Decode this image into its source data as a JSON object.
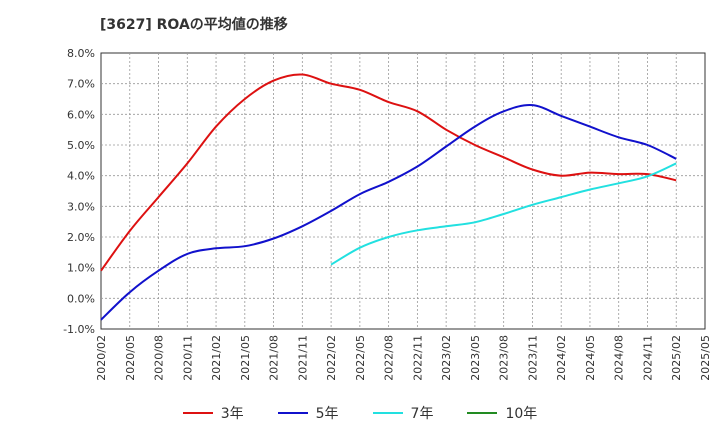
{
  "chart_data": {
    "type": "line",
    "title": "[3627]  ROAの平均値の推移",
    "xlabel": "",
    "ylabel": "",
    "ylim": [
      -1.0,
      8.0
    ],
    "yticks": [
      "-1.0%",
      "0.0%",
      "1.0%",
      "2.0%",
      "3.0%",
      "4.0%",
      "5.0%",
      "6.0%",
      "7.0%",
      "8.0%"
    ],
    "xticks": [
      "2020/02",
      "2020/05",
      "2020/08",
      "2020/11",
      "2021/02",
      "2021/05",
      "2021/08",
      "2021/11",
      "2022/02",
      "2022/05",
      "2022/08",
      "2022/11",
      "2023/02",
      "2023/05",
      "2023/08",
      "2023/11",
      "2024/02",
      "2024/05",
      "2024/08",
      "2024/11",
      "2025/02",
      "2025/05"
    ],
    "grid": true,
    "legend_position": "bottom",
    "series": [
      {
        "name": "3年",
        "color": "#dd1111",
        "x": [
          "2020/02",
          "2020/05",
          "2020/08",
          "2020/11",
          "2021/02",
          "2021/05",
          "2021/08",
          "2021/11",
          "2022/02",
          "2022/05",
          "2022/08",
          "2022/11",
          "2023/02",
          "2023/05",
          "2023/08",
          "2023/11",
          "2024/02",
          "2024/05",
          "2024/08",
          "2024/11",
          "2025/02"
        ],
        "values": [
          0.9,
          2.2,
          3.3,
          4.4,
          5.6,
          6.5,
          7.1,
          7.3,
          7.0,
          6.8,
          6.4,
          6.1,
          5.5,
          5.0,
          4.6,
          4.2,
          4.0,
          4.1,
          4.05,
          4.05,
          3.85
        ]
      },
      {
        "name": "5年",
        "color": "#1111cc",
        "x": [
          "2020/02",
          "2020/05",
          "2020/08",
          "2020/11",
          "2021/02",
          "2021/05",
          "2021/08",
          "2021/11",
          "2022/02",
          "2022/05",
          "2022/08",
          "2022/11",
          "2023/02",
          "2023/05",
          "2023/08",
          "2023/11",
          "2024/02",
          "2024/05",
          "2024/08",
          "2024/11",
          "2025/02"
        ],
        "values": [
          -0.7,
          0.2,
          0.9,
          1.45,
          1.63,
          1.7,
          1.95,
          2.35,
          2.85,
          3.4,
          3.8,
          4.3,
          4.95,
          5.6,
          6.1,
          6.3,
          5.95,
          5.6,
          5.25,
          5.0,
          4.55
        ]
      },
      {
        "name": "7年",
        "color": "#22e0e0",
        "x": [
          "2022/02",
          "2022/05",
          "2022/08",
          "2022/11",
          "2023/02",
          "2023/05",
          "2023/08",
          "2023/11",
          "2024/02",
          "2024/05",
          "2024/08",
          "2024/11",
          "2025/02"
        ],
        "values": [
          1.1,
          1.65,
          2.0,
          2.22,
          2.35,
          2.48,
          2.75,
          3.05,
          3.3,
          3.55,
          3.75,
          3.98,
          4.4
        ]
      },
      {
        "name": "10年",
        "color": "#228b22",
        "x": [],
        "values": []
      }
    ]
  }
}
